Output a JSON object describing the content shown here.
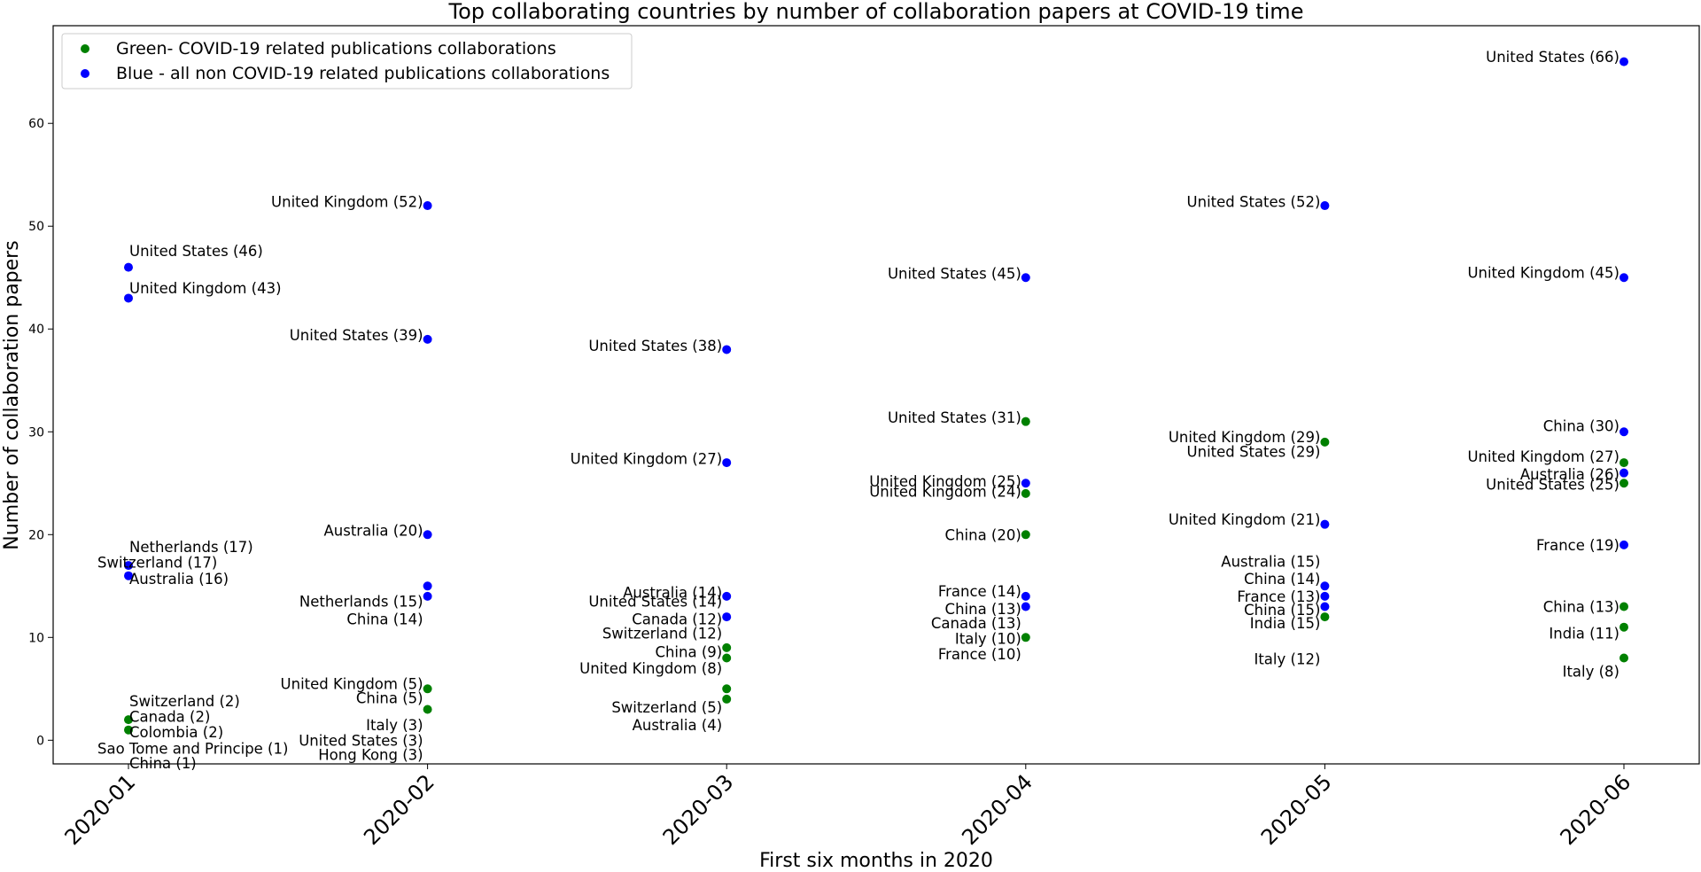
{
  "chart_data": {
    "type": "scatter",
    "title": "Top collaborating countries by number of collaboration papers at COVID-19 time",
    "xlabel": "First six months in 2020",
    "ylabel": "Number of collaboration papers",
    "categories": [
      "2020-01",
      "2020-02",
      "2020-03",
      "2020-04",
      "2020-05",
      "2020-06"
    ],
    "yticks": [
      0,
      10,
      20,
      30,
      40,
      50,
      60
    ],
    "ylim": [
      -2.3,
      69.5
    ],
    "legend_position": "top-left",
    "grid": false,
    "series": [
      {
        "name": "Green- COVID-19 related publications collaborations",
        "color": "#008000",
        "points": [
          {
            "x": "2020-01",
            "y": 2
          },
          {
            "x": "2020-01",
            "y": 1
          },
          {
            "x": "2020-02",
            "y": 5
          },
          {
            "x": "2020-02",
            "y": 3
          },
          {
            "x": "2020-03",
            "y": 9
          },
          {
            "x": "2020-03",
            "y": 8
          },
          {
            "x": "2020-03",
            "y": 5
          },
          {
            "x": "2020-03",
            "y": 4
          },
          {
            "x": "2020-04",
            "y": 31
          },
          {
            "x": "2020-04",
            "y": 24
          },
          {
            "x": "2020-04",
            "y": 20
          },
          {
            "x": "2020-04",
            "y": 10
          },
          {
            "x": "2020-05",
            "y": 29
          },
          {
            "x": "2020-05",
            "y": 12
          },
          {
            "x": "2020-06",
            "y": 27
          },
          {
            "x": "2020-06",
            "y": 25
          },
          {
            "x": "2020-06",
            "y": 13
          },
          {
            "x": "2020-06",
            "y": 11
          },
          {
            "x": "2020-06",
            "y": 8
          }
        ]
      },
      {
        "name": "Blue - all non COVID-19 related publications collaborations",
        "color": "#0000ff",
        "points": [
          {
            "x": "2020-01",
            "y": 46
          },
          {
            "x": "2020-01",
            "y": 43
          },
          {
            "x": "2020-01",
            "y": 17
          },
          {
            "x": "2020-01",
            "y": 16
          },
          {
            "x": "2020-02",
            "y": 52
          },
          {
            "x": "2020-02",
            "y": 39
          },
          {
            "x": "2020-02",
            "y": 20
          },
          {
            "x": "2020-02",
            "y": 15
          },
          {
            "x": "2020-02",
            "y": 14
          },
          {
            "x": "2020-03",
            "y": 38
          },
          {
            "x": "2020-03",
            "y": 27
          },
          {
            "x": "2020-03",
            "y": 14
          },
          {
            "x": "2020-03",
            "y": 12
          },
          {
            "x": "2020-04",
            "y": 45
          },
          {
            "x": "2020-04",
            "y": 25
          },
          {
            "x": "2020-04",
            "y": 14
          },
          {
            "x": "2020-04",
            "y": 13
          },
          {
            "x": "2020-05",
            "y": 52
          },
          {
            "x": "2020-05",
            "y": 21
          },
          {
            "x": "2020-05",
            "y": 15
          },
          {
            "x": "2020-05",
            "y": 14
          },
          {
            "x": "2020-05",
            "y": 13
          },
          {
            "x": "2020-06",
            "y": 66
          },
          {
            "x": "2020-06",
            "y": 45
          },
          {
            "x": "2020-06",
            "y": 30
          },
          {
            "x": "2020-06",
            "y": 26
          },
          {
            "x": "2020-06",
            "y": 19
          }
        ]
      }
    ],
    "annotations": [
      {
        "text": "United States (46)",
        "x": "2020-01",
        "y": 47.6,
        "side": "right"
      },
      {
        "text": "United Kingdom (43)",
        "x": "2020-01",
        "y": 44.0,
        "side": "right"
      },
      {
        "text": "Netherlands (17)",
        "x": "2020-01",
        "y": 18.8,
        "side": "right"
      },
      {
        "text": "Switzerland (17)",
        "x": "2020-01",
        "y": 17.3,
        "side": "center"
      },
      {
        "text": "Australia (16)",
        "x": "2020-01",
        "y": 15.7,
        "side": "right"
      },
      {
        "text": "Switzerland (2)",
        "x": "2020-01",
        "y": 3.8,
        "side": "right"
      },
      {
        "text": "Canada (2)",
        "x": "2020-01",
        "y": 2.3,
        "side": "right"
      },
      {
        "text": "Colombia (2)",
        "x": "2020-01",
        "y": 0.8,
        "side": "right"
      },
      {
        "text": "Sao Tome and Principe (1)",
        "x": "2020-01",
        "y": -0.8,
        "side": "center"
      },
      {
        "text": "China (1)",
        "x": "2020-01",
        "y": -2.2,
        "side": "right"
      },
      {
        "text": "United Kingdom (52)",
        "x": "2020-02",
        "y": 52.4,
        "side": "left"
      },
      {
        "text": "United States (39)",
        "x": "2020-02",
        "y": 39.4,
        "side": "left"
      },
      {
        "text": "Australia (20)",
        "x": "2020-02",
        "y": 20.4,
        "side": "left"
      },
      {
        "text": "Netherlands (15)",
        "x": "2020-02",
        "y": 13.5,
        "side": "left"
      },
      {
        "text": "China (14)",
        "x": "2020-02",
        "y": 11.8,
        "side": "left"
      },
      {
        "text": "United Kingdom (5)",
        "x": "2020-02",
        "y": 5.5,
        "side": "left"
      },
      {
        "text": "China (5)",
        "x": "2020-02",
        "y": 4.1,
        "side": "left"
      },
      {
        "text": "Italy (3)",
        "x": "2020-02",
        "y": 1.5,
        "side": "left"
      },
      {
        "text": "United States (3)",
        "x": "2020-02",
        "y": 0.0,
        "side": "left"
      },
      {
        "text": "Hong Kong (3)",
        "x": "2020-02",
        "y": -1.4,
        "side": "left"
      },
      {
        "text": "United States (38)",
        "x": "2020-03",
        "y": 38.4,
        "side": "left"
      },
      {
        "text": "United Kingdom (27)",
        "x": "2020-03",
        "y": 27.4,
        "side": "left"
      },
      {
        "text": "Australia (14)",
        "x": "2020-03",
        "y": 14.4,
        "side": "left"
      },
      {
        "text": "United States (14)",
        "x": "2020-03",
        "y": 13.5,
        "side": "left"
      },
      {
        "text": "Canada (12)",
        "x": "2020-03",
        "y": 11.8,
        "side": "left"
      },
      {
        "text": "Switzerland (12)",
        "x": "2020-03",
        "y": 10.4,
        "side": "left"
      },
      {
        "text": "China (9)",
        "x": "2020-03",
        "y": 8.6,
        "side": "left"
      },
      {
        "text": "United Kingdom (8)",
        "x": "2020-03",
        "y": 7.0,
        "side": "left"
      },
      {
        "text": "Switzerland (5)",
        "x": "2020-03",
        "y": 3.2,
        "side": "left"
      },
      {
        "text": "Australia (4)",
        "x": "2020-03",
        "y": 1.5,
        "side": "left"
      },
      {
        "text": "United States (45)",
        "x": "2020-04",
        "y": 45.4,
        "side": "left"
      },
      {
        "text": "United States (31)",
        "x": "2020-04",
        "y": 31.4,
        "side": "left"
      },
      {
        "text": "United Kingdom (25)",
        "x": "2020-04",
        "y": 25.2,
        "side": "left"
      },
      {
        "text": "United Kingdom (24)",
        "x": "2020-04",
        "y": 24.2,
        "side": "left"
      },
      {
        "text": "China (20)",
        "x": "2020-04",
        "y": 20.0,
        "side": "left"
      },
      {
        "text": "France (14)",
        "x": "2020-04",
        "y": 14.5,
        "side": "left"
      },
      {
        "text": "China (13)",
        "x": "2020-04",
        "y": 12.8,
        "side": "left"
      },
      {
        "text": "Canada (13)",
        "x": "2020-04",
        "y": 11.4,
        "side": "left"
      },
      {
        "text": "Italy (10)",
        "x": "2020-04",
        "y": 9.9,
        "side": "left"
      },
      {
        "text": "France (10)",
        "x": "2020-04",
        "y": 8.4,
        "side": "left"
      },
      {
        "text": "United States (52)",
        "x": "2020-05",
        "y": 52.4,
        "side": "left"
      },
      {
        "text": "United Kingdom (29)",
        "x": "2020-05",
        "y": 29.5,
        "side": "left"
      },
      {
        "text": "United States (29)",
        "x": "2020-05",
        "y": 28.1,
        "side": "left"
      },
      {
        "text": "United Kingdom (21)",
        "x": "2020-05",
        "y": 21.5,
        "side": "left"
      },
      {
        "text": "Australia (15)",
        "x": "2020-05",
        "y": 17.4,
        "side": "left"
      },
      {
        "text": "China (14)",
        "x": "2020-05",
        "y": 15.7,
        "side": "left"
      },
      {
        "text": "France (13)",
        "x": "2020-05",
        "y": 14.0,
        "side": "left"
      },
      {
        "text": "China (15)",
        "x": "2020-05",
        "y": 12.7,
        "side": "left"
      },
      {
        "text": "India (15)",
        "x": "2020-05",
        "y": 11.4,
        "side": "left"
      },
      {
        "text": "Italy (12)",
        "x": "2020-05",
        "y": 7.9,
        "side": "left"
      },
      {
        "text": "United States (66)",
        "x": "2020-06",
        "y": 66.5,
        "side": "left"
      },
      {
        "text": "United Kingdom (45)",
        "x": "2020-06",
        "y": 45.5,
        "side": "left"
      },
      {
        "text": "China (30)",
        "x": "2020-06",
        "y": 30.6,
        "side": "left"
      },
      {
        "text": "United Kingdom (27)",
        "x": "2020-06",
        "y": 27.6,
        "side": "left"
      },
      {
        "text": "Australia (26)",
        "x": "2020-06",
        "y": 25.9,
        "side": "left"
      },
      {
        "text": "United States (25)",
        "x": "2020-06",
        "y": 24.9,
        "side": "left"
      },
      {
        "text": "France (19)",
        "x": "2020-06",
        "y": 19.0,
        "side": "left"
      },
      {
        "text": "China (13)",
        "x": "2020-06",
        "y": 13.0,
        "side": "left"
      },
      {
        "text": "India (11)",
        "x": "2020-06",
        "y": 10.4,
        "side": "left"
      },
      {
        "text": "Italy (8)",
        "x": "2020-06",
        "y": 6.7,
        "side": "left"
      }
    ]
  }
}
